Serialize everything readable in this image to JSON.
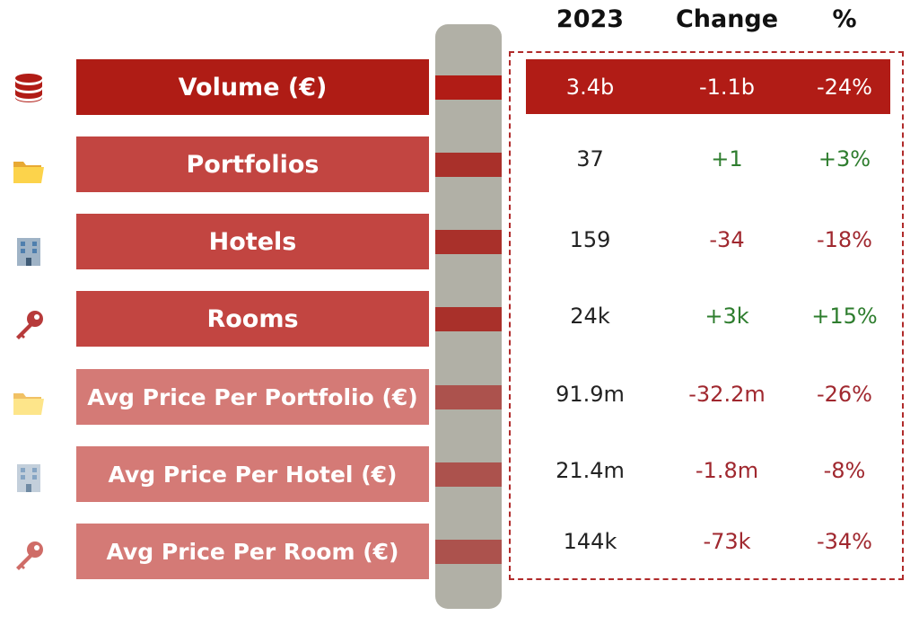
{
  "headers": {
    "year": "2023",
    "change": "Change",
    "pct": "%"
  },
  "rows": [
    {
      "label": "Volume (€)",
      "icon": "database-icon",
      "value": "3.4b",
      "change": "-1.1b",
      "pct": "-24%",
      "trend": "negative"
    },
    {
      "label": "Portfolios",
      "icon": "folder-icon",
      "value": "37",
      "change": "+1",
      "pct": "+3%",
      "trend": "positive"
    },
    {
      "label": "Hotels",
      "icon": "hotel-building-icon",
      "value": "159",
      "change": "-34",
      "pct": "-18%",
      "trend": "negative"
    },
    {
      "label": "Rooms",
      "icon": "key-icon",
      "value": "24k",
      "change": "+3k",
      "pct": "+15%",
      "trend": "positive"
    },
    {
      "label": "Avg Price Per Portfolio (€)",
      "icon": "folder-icon",
      "value": "91.9m",
      "change": "-32.2m",
      "pct": "-26%",
      "trend": "negative"
    },
    {
      "label": "Avg Price Per Hotel (€)",
      "icon": "hotel-building-icon",
      "value": "21.4m",
      "change": "-1.8m",
      "pct": "-8%",
      "trend": "negative"
    },
    {
      "label": "Avg Price Per Room (€)",
      "icon": "key-icon",
      "value": "144k",
      "change": "-73k",
      "pct": "-34%",
      "trend": "negative"
    }
  ],
  "colors": {
    "primary": "#af1c15",
    "secondary": "#c24541",
    "tertiary": "#d47a76",
    "positive": "#2e7d2e",
    "negative": "#a0282f",
    "track": "#b1b0a6"
  }
}
